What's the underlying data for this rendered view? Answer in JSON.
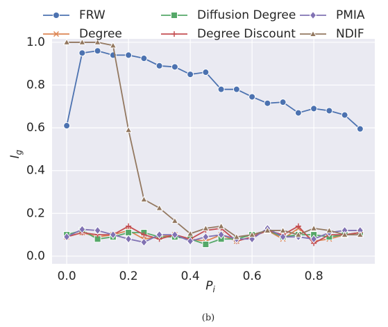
{
  "chart_data": {
    "type": "line",
    "xlabel": {
      "base": "P",
      "subscript": "i"
    },
    "ylabel": {
      "base": "I",
      "subscript": "g"
    },
    "caption": "(b)",
    "x": [
      0,
      0.05,
      0.1,
      0.15,
      0.2,
      0.25,
      0.3,
      0.35,
      0.4,
      0.45,
      0.5,
      0.55,
      0.6,
      0.65,
      0.7,
      0.75,
      0.8,
      0.85,
      0.9,
      0.95
    ],
    "xlim": [
      -0.0475,
      0.9975
    ],
    "ylim": [
      -0.036,
      1.016
    ],
    "xticks": [
      {
        "value": 0,
        "label": "0.0"
      },
      0.2,
      0.4,
      0.6,
      0.8
    ],
    "yticks": [
      {
        "value": 0,
        "label": "0.0"
      },
      0.2,
      0.4,
      0.6,
      0.8,
      {
        "value": 1,
        "label": "1.0"
      }
    ],
    "grid": true,
    "legend": "top",
    "series": [
      {
        "name": "FRW",
        "color": "#4c72b0",
        "marker": "circle",
        "values": [
          0.61,
          0.95,
          0.96,
          0.94,
          0.94,
          0.925,
          0.89,
          0.885,
          0.85,
          0.86,
          0.78,
          0.78,
          0.745,
          0.715,
          0.72,
          0.67,
          0.69,
          0.68,
          0.66,
          0.595
        ]
      },
      {
        "name": "Degree",
        "color": "#dd8452",
        "marker": "x",
        "values": [
          0.09,
          0.11,
          0.09,
          0.1,
          0.12,
          0.08,
          0.09,
          0.1,
          0.08,
          0.07,
          0.1,
          0.07,
          0.09,
          0.12,
          0.08,
          0.13,
          0.07,
          0.08,
          0.1,
          0.11
        ]
      },
      {
        "name": "Diffusion Degree",
        "color": "#55a868",
        "marker": "square",
        "values": [
          0.1,
          0.12,
          0.08,
          0.09,
          0.11,
          0.11,
          0.09,
          0.09,
          0.08,
          0.055,
          0.08,
          0.08,
          0.1,
          0.12,
          0.09,
          0.1,
          0.1,
          0.09,
          0.1,
          0.11
        ]
      },
      {
        "name": "Degree Discount",
        "color": "#c44e52",
        "marker": "plus",
        "values": [
          0.09,
          0.11,
          0.1,
          0.1,
          0.14,
          0.1,
          0.08,
          0.1,
          0.08,
          0.12,
          0.13,
          0.07,
          0.09,
          0.12,
          0.1,
          0.14,
          0.06,
          0.1,
          0.1,
          0.11
        ]
      },
      {
        "name": "PMIA",
        "color": "#8172b3",
        "marker": "diamond",
        "values": [
          0.09,
          0.125,
          0.12,
          0.1,
          0.08,
          0.065,
          0.1,
          0.1,
          0.07,
          0.09,
          0.1,
          0.08,
          0.08,
          0.13,
          0.09,
          0.09,
          0.08,
          0.11,
          0.12,
          0.12
        ]
      },
      {
        "name": "NDIF",
        "color": "#937860",
        "marker": "triangle",
        "values": [
          1.0,
          1.0,
          1.0,
          0.985,
          0.59,
          0.265,
          0.225,
          0.165,
          0.105,
          0.13,
          0.14,
          0.09,
          0.1,
          0.12,
          0.12,
          0.1,
          0.13,
          0.12,
          0.1,
          0.1
        ]
      }
    ]
  }
}
